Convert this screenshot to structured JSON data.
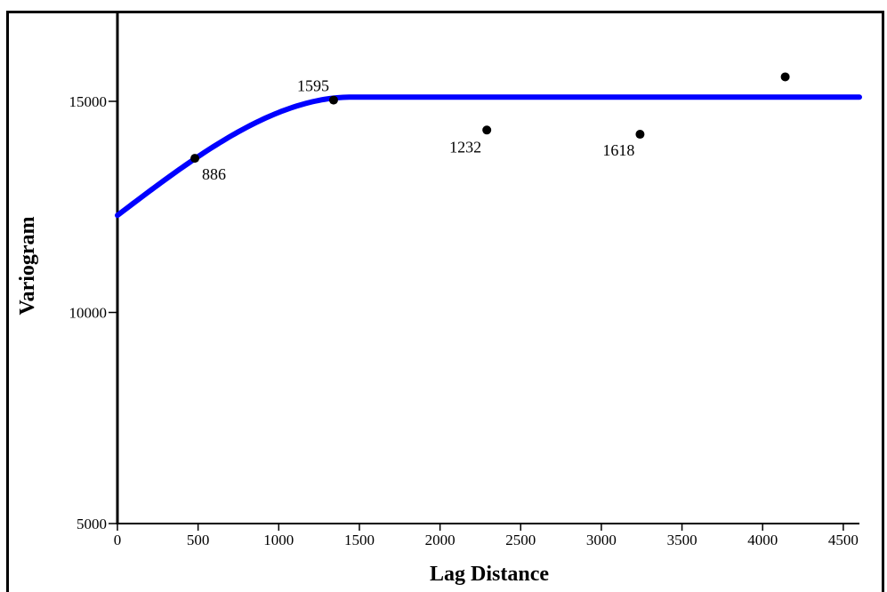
{
  "chart_data": {
    "type": "scatter",
    "xlabel": "Lag Distance",
    "ylabel": "Variogram",
    "xlim": [
      0,
      4600
    ],
    "ylim": [
      5000,
      17000
    ],
    "x_ticks": [
      0,
      500,
      1000,
      1500,
      2000,
      2500,
      3000,
      3500,
      4000,
      4500
    ],
    "y_ticks": [
      5000,
      10000,
      15000
    ],
    "points": [
      {
        "x": 480,
        "y": 13650,
        "label": "886"
      },
      {
        "x": 1340,
        "y": 15030,
        "label": "1595"
      },
      {
        "x": 2290,
        "y": 14320,
        "label": "1232"
      },
      {
        "x": 3240,
        "y": 14220,
        "label": "1618"
      },
      {
        "x": 4140,
        "y": 15580,
        "label": ""
      }
    ],
    "model_curve": {
      "type": "spherical",
      "nugget": 12300,
      "sill": 15100,
      "range": 1450,
      "x_max": 4600,
      "color": "#0000ff"
    },
    "point_color": "#000000",
    "grid": false
  }
}
